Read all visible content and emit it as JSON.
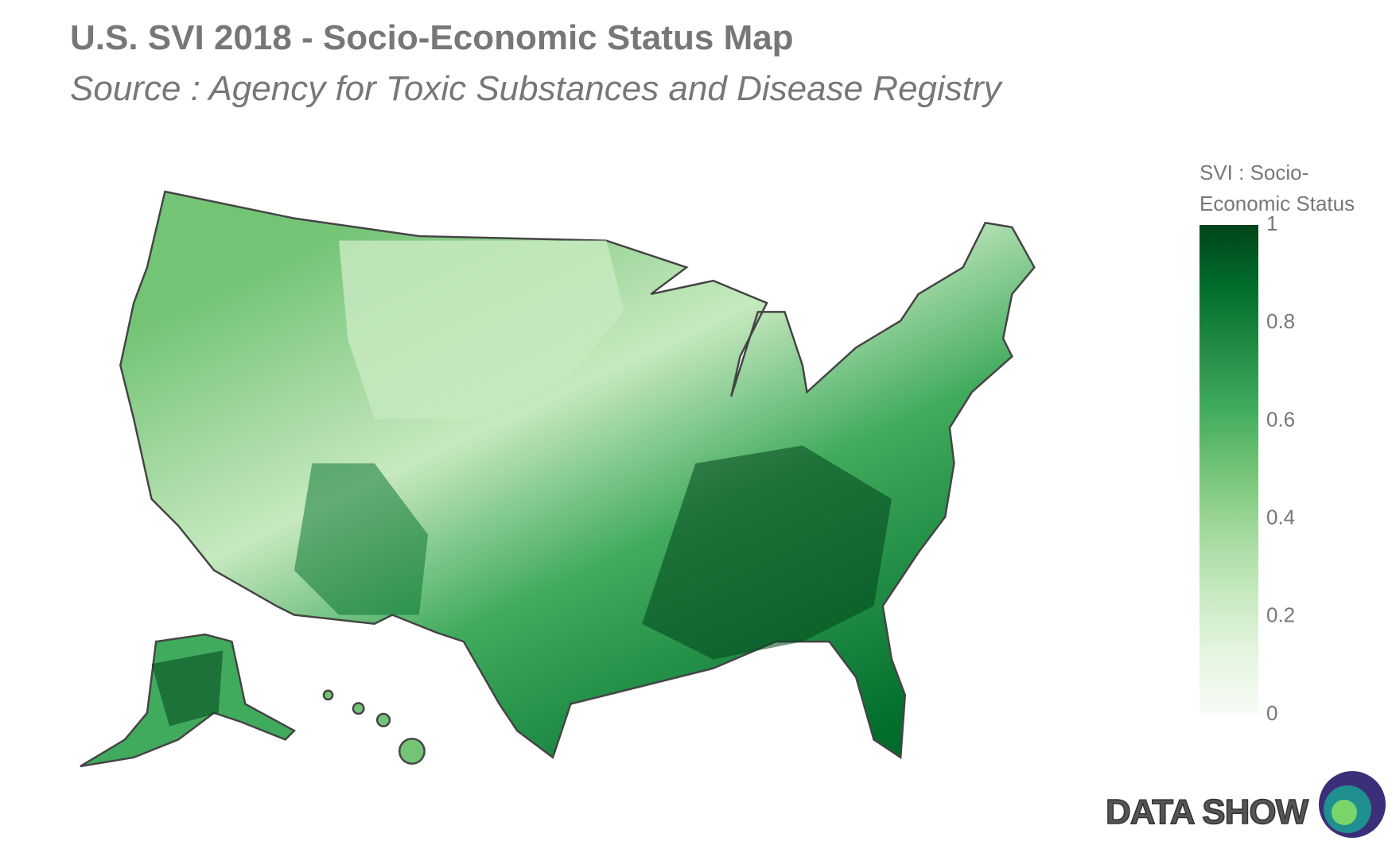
{
  "chart_data": {
    "type": "choropleth",
    "title": "U.S. SVI 2018 - Socio-Economic Status Map",
    "subtitle": "Source : Agency for Toxic Substances and Disease Registry",
    "colorbar": {
      "title": [
        "SVI : Socio-",
        "Economic Status"
      ],
      "ylim": [
        0,
        1
      ],
      "yticks": [
        0,
        0.2,
        0.4,
        0.6,
        0.8,
        1
      ],
      "colorscale": [
        "#f7fcf5",
        "#e5f5e0",
        "#c7e9c0",
        "#a1d99b",
        "#74c476",
        "#41ab5d",
        "#238b45",
        "#006d2c",
        "#00441b"
      ]
    }
  },
  "logo": "DATA SHOW"
}
